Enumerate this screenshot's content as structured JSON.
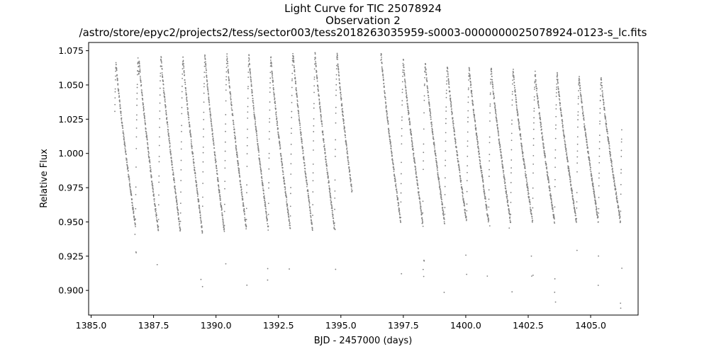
{
  "chart_data": {
    "type": "scatter",
    "title_lines": [
      "Light Curve for TIC 25078924",
      "Observation 2",
      "/astro/store/epyc2/projects2/tess/sector003/tess2018263035959-s0003-0000000025078924-0123-s_lc.fits"
    ],
    "xlabel": "BJD - 2457000 (days)",
    "ylabel": "Relative Flux",
    "xlim": [
      1384.9,
      1406.9
    ],
    "ylim": [
      0.882,
      1.081
    ],
    "xticks": [
      1385.0,
      1387.5,
      1390.0,
      1392.5,
      1395.0,
      1397.5,
      1400.0,
      1402.5,
      1405.0
    ],
    "xtick_labels": [
      "1385.0",
      "1387.5",
      "1390.0",
      "1392.5",
      "1395.0",
      "1397.5",
      "1400.0",
      "1402.5",
      "1405.0"
    ],
    "yticks": [
      0.9,
      0.925,
      0.95,
      0.975,
      1.0,
      1.025,
      1.05,
      1.075
    ],
    "ytick_labels": [
      "0.900",
      "0.925",
      "0.950",
      "0.975",
      "1.000",
      "1.025",
      "1.050",
      "1.075"
    ],
    "grid": false,
    "marker_color": "#808080",
    "segments": [
      {
        "x_start": 1385.95,
        "x_end": 1395.45
      },
      {
        "x_start": 1396.6,
        "x_end": 1406.25
      }
    ],
    "period_days": 0.8808,
    "pulsations": [
      {
        "peak_x": 1386.0,
        "peak_y": 1.066,
        "min_y": 0.947,
        "dip_y": 0.9
      },
      {
        "peak_x": 1386.92,
        "peak_y": 1.069,
        "min_y": 0.943,
        "dip_y": 0.9
      },
      {
        "peak_x": 1387.8,
        "peak_y": 1.071,
        "min_y": 0.943,
        "dip_y": 0.9
      },
      {
        "peak_x": 1388.68,
        "peak_y": 1.071,
        "min_y": 0.943,
        "dip_y": 0.898
      },
      {
        "peak_x": 1389.56,
        "peak_y": 1.072,
        "min_y": 0.943,
        "dip_y": 0.898
      },
      {
        "peak_x": 1390.44,
        "peak_y": 1.072,
        "min_y": 0.945,
        "dip_y": 0.895
      },
      {
        "peak_x": 1391.32,
        "peak_y": 1.071,
        "min_y": 0.945,
        "dip_y": 0.895
      },
      {
        "peak_x": 1392.2,
        "peak_y": 1.07,
        "min_y": 0.945,
        "dip_y": 0.895
      },
      {
        "peak_x": 1393.09,
        "peak_y": 1.073,
        "min_y": 0.945,
        "dip_y": 0.895
      },
      {
        "peak_x": 1393.97,
        "peak_y": 1.073,
        "min_y": 0.945,
        "dip_y": 0.895
      },
      {
        "peak_x": 1394.85,
        "peak_y": 1.073,
        "min_y": 0.947,
        "dip_y": 0.895
      },
      {
        "peak_x": 1396.62,
        "peak_y": 1.071,
        "min_y": 0.95,
        "dip_y": 0.897
      },
      {
        "peak_x": 1397.5,
        "peak_y": 1.068,
        "min_y": 0.95,
        "dip_y": 0.895
      },
      {
        "peak_x": 1398.38,
        "peak_y": 1.066,
        "min_y": 0.95,
        "dip_y": 0.893
      },
      {
        "peak_x": 1399.26,
        "peak_y": 1.064,
        "min_y": 0.95,
        "dip_y": 0.893
      },
      {
        "peak_x": 1400.14,
        "peak_y": 1.063,
        "min_y": 0.95,
        "dip_y": 0.89
      },
      {
        "peak_x": 1401.02,
        "peak_y": 1.062,
        "min_y": 0.95,
        "dip_y": 0.89
      },
      {
        "peak_x": 1401.9,
        "peak_y": 1.061,
        "min_y": 0.95,
        "dip_y": 0.89
      },
      {
        "peak_x": 1402.78,
        "peak_y": 1.059,
        "min_y": 0.95,
        "dip_y": 0.89
      },
      {
        "peak_x": 1403.66,
        "peak_y": 1.058,
        "min_y": 0.95,
        "dip_y": 0.89
      },
      {
        "peak_x": 1404.54,
        "peak_y": 1.056,
        "min_y": 0.95,
        "dip_y": 0.89
      },
      {
        "peak_x": 1405.42,
        "peak_y": 1.055,
        "min_y": 0.95,
        "dip_y": 0.887
      }
    ]
  }
}
